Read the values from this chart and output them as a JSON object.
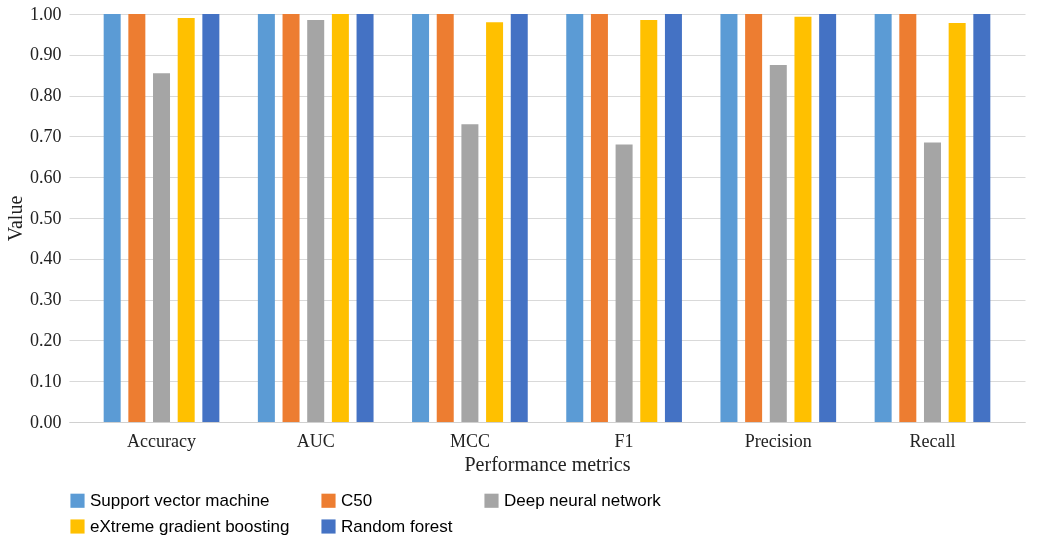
{
  "chart_data": {
    "type": "bar",
    "xlabel": "Performance metrics",
    "ylabel": "Value",
    "categories": [
      "Accuracy",
      "AUC",
      "MCC",
      "F1",
      "Precision",
      "Recall"
    ],
    "series": [
      {
        "name": "Support vector machine",
        "color": "#5b9bd5",
        "values": [
          1,
          1,
          1,
          1,
          1,
          1
        ]
      },
      {
        "name": "C50",
        "color": "#ed7d31",
        "values": [
          1,
          1,
          1,
          1,
          1,
          1
        ]
      },
      {
        "name": "Deep neural network",
        "color": "#a5a5a5",
        "values": [
          0.855,
          0.985,
          0.73,
          0.68,
          0.875,
          0.685
        ]
      },
      {
        "name": "eXtreme gradient boosting",
        "color": "#ffc000",
        "values": [
          0.99,
          1,
          0.98,
          0.985,
          0.993,
          0.978
        ]
      },
      {
        "name": "Random forest",
        "color": "#4472c4",
        "values": [
          1,
          1,
          1,
          1,
          1,
          1
        ]
      }
    ],
    "ylim": [
      0,
      1
    ],
    "yticks": [
      {
        "value": 0,
        "label": "0.00"
      },
      {
        "value": 0.1,
        "label": "0.10"
      },
      {
        "value": 0.2,
        "label": "0.20"
      },
      {
        "value": 0.3,
        "label": "0.30"
      },
      {
        "value": 0.4,
        "label": "0.40"
      },
      {
        "value": 0.5,
        "label": "0.50"
      },
      {
        "value": 0.6,
        "label": "0.60"
      },
      {
        "value": 0.7,
        "label": "0.70"
      },
      {
        "value": 0.8,
        "label": "0.80"
      },
      {
        "value": 0.9,
        "label": "0.90"
      },
      {
        "value": 1,
        "label": "1.00"
      }
    ],
    "grid": "y",
    "legend": "bottom"
  }
}
